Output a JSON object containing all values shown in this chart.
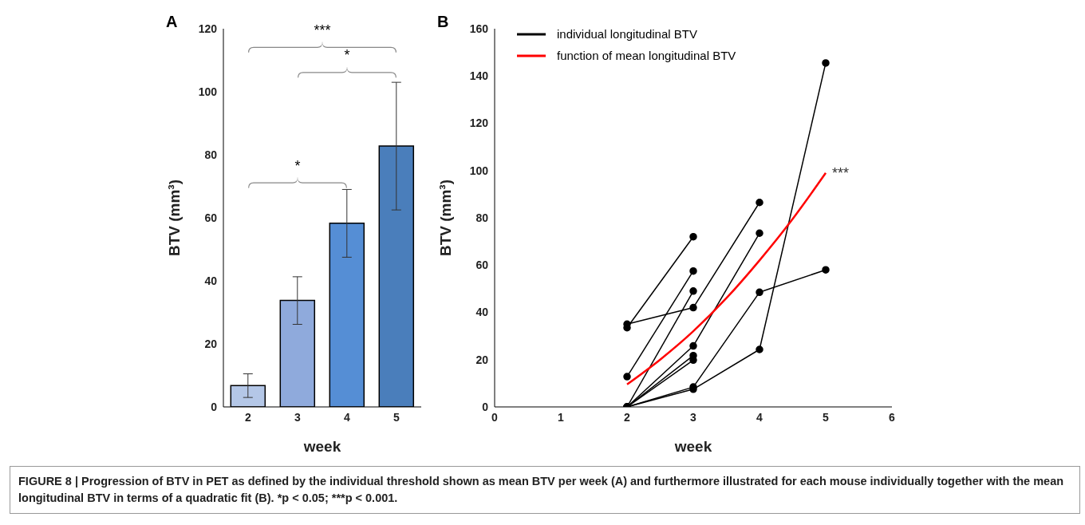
{
  "chart_data": [
    {
      "type": "bar",
      "title": "A",
      "categories": [
        "2",
        "3",
        "4",
        "5"
      ],
      "xlabel": "week",
      "ylabel": "BTV (mm³)",
      "values": [
        6.8,
        33.8,
        58.3,
        82.8
      ],
      "colors": [
        "#b4c7e7",
        "#8faadc",
        "#558ed5",
        "#4a7ebb"
      ],
      "errors": [
        [
          3,
          10.5
        ],
        [
          26.2,
          41.3
        ],
        [
          47.5,
          69
        ],
        [
          62.5,
          103
        ]
      ],
      "ylim": [
        0,
        120
      ],
      "yticks": [
        0,
        20,
        40,
        60,
        80,
        100,
        120
      ],
      "grid": false,
      "annotations": [
        "***",
        "*",
        "*",
        "FIGURE 8 | Progression of BTV in PET as defined by the individual threshold shown as mean BTV per week (A) and furthermore illustrated for each mouse individually together with the mean longitudinal BTV in terms of a quadratic fit (B). *p < 0.05; ***p < 0.001."
      ]
    },
    {
      "type": "line",
      "title": "B",
      "xlabel": "week",
      "ylabel": "BTV (mm³)",
      "xlim": [
        0,
        6
      ],
      "xticks": [
        0,
        1,
        2,
        3,
        4,
        5,
        6
      ],
      "ylim": [
        0,
        160
      ],
      "yticks": [
        0,
        20,
        40,
        60,
        80,
        100,
        120,
        140,
        160
      ],
      "grid": false,
      "legend": "top left",
      "marker": "circle",
      "line_style": "solid",
      "series": [
        {
          "name": "individual longitudinal BTV",
          "color": "#000000",
          "x": [
            2,
            3,
            4
          ],
          "values": [
            35,
            42,
            86.5
          ]
        },
        {
          "color": "#000000",
          "x": [
            2,
            3
          ],
          "values": [
            33.5,
            72
          ]
        },
        {
          "color": "#000000",
          "x": [
            2,
            3
          ],
          "values": [
            12.8,
            57.5
          ]
        },
        {
          "color": "#000000",
          "x": [
            2,
            3
          ],
          "values": [
            0,
            49
          ]
        },
        {
          "color": "#000000",
          "x": [
            2,
            3,
            4
          ],
          "values": [
            0,
            25.8,
            73.5
          ]
        },
        {
          "color": "#000000",
          "x": [
            2,
            3
          ],
          "values": [
            0,
            21.7
          ]
        },
        {
          "color": "#000000",
          "x": [
            2,
            3
          ],
          "values": [
            0,
            19.8
          ]
        },
        {
          "color": "#000000",
          "x": [
            2,
            3,
            4,
            5
          ],
          "values": [
            0,
            8.4,
            48.5,
            58
          ]
        },
        {
          "color": "#000000",
          "x": [
            2,
            3,
            4,
            5
          ],
          "values": [
            0,
            7.5,
            24.3,
            145.5
          ]
        },
        {
          "name": "function of mean longitudinal BTV",
          "color": "#ff0000",
          "marker": "none",
          "x": [
            2,
            2.5,
            3,
            3.5,
            4,
            4.5,
            5
          ],
          "values": [
            9.5,
            20,
            32,
            46,
            62,
            79.5,
            99
          ]
        }
      ],
      "annotations": [
        {
          "text": "***",
          "x": 5,
          "y": 99
        }
      ]
    }
  ]
}
